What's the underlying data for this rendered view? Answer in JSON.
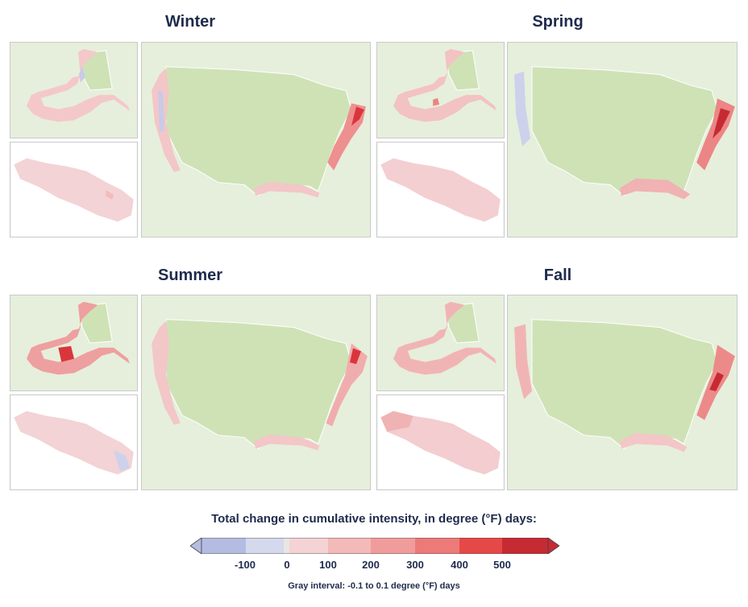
{
  "seasons": [
    {
      "title": "Winter"
    },
    {
      "title": "Spring"
    },
    {
      "title": "Summer"
    },
    {
      "title": "Fall"
    }
  ],
  "legend": {
    "title": "Total change in cumulative intensity, in degree (°F) days:",
    "ticks": [
      "-100",
      "0",
      "100",
      "200",
      "300",
      "400",
      "500"
    ],
    "note": "Gray interval: -0.1 to 0.1 degree (°F) days",
    "colors": [
      "#b5bce2",
      "#d5d9ee",
      "#e7e5e6",
      "#f5d3d4",
      "#f4b9b9",
      "#f19c9c",
      "#ec7a78",
      "#e64848",
      "#c62b33"
    ]
  },
  "colors": {
    "land": "#e6efdb",
    "land_us": "#cfe2b6",
    "border": "#ffffff",
    "title": "#1f2b4d"
  }
}
